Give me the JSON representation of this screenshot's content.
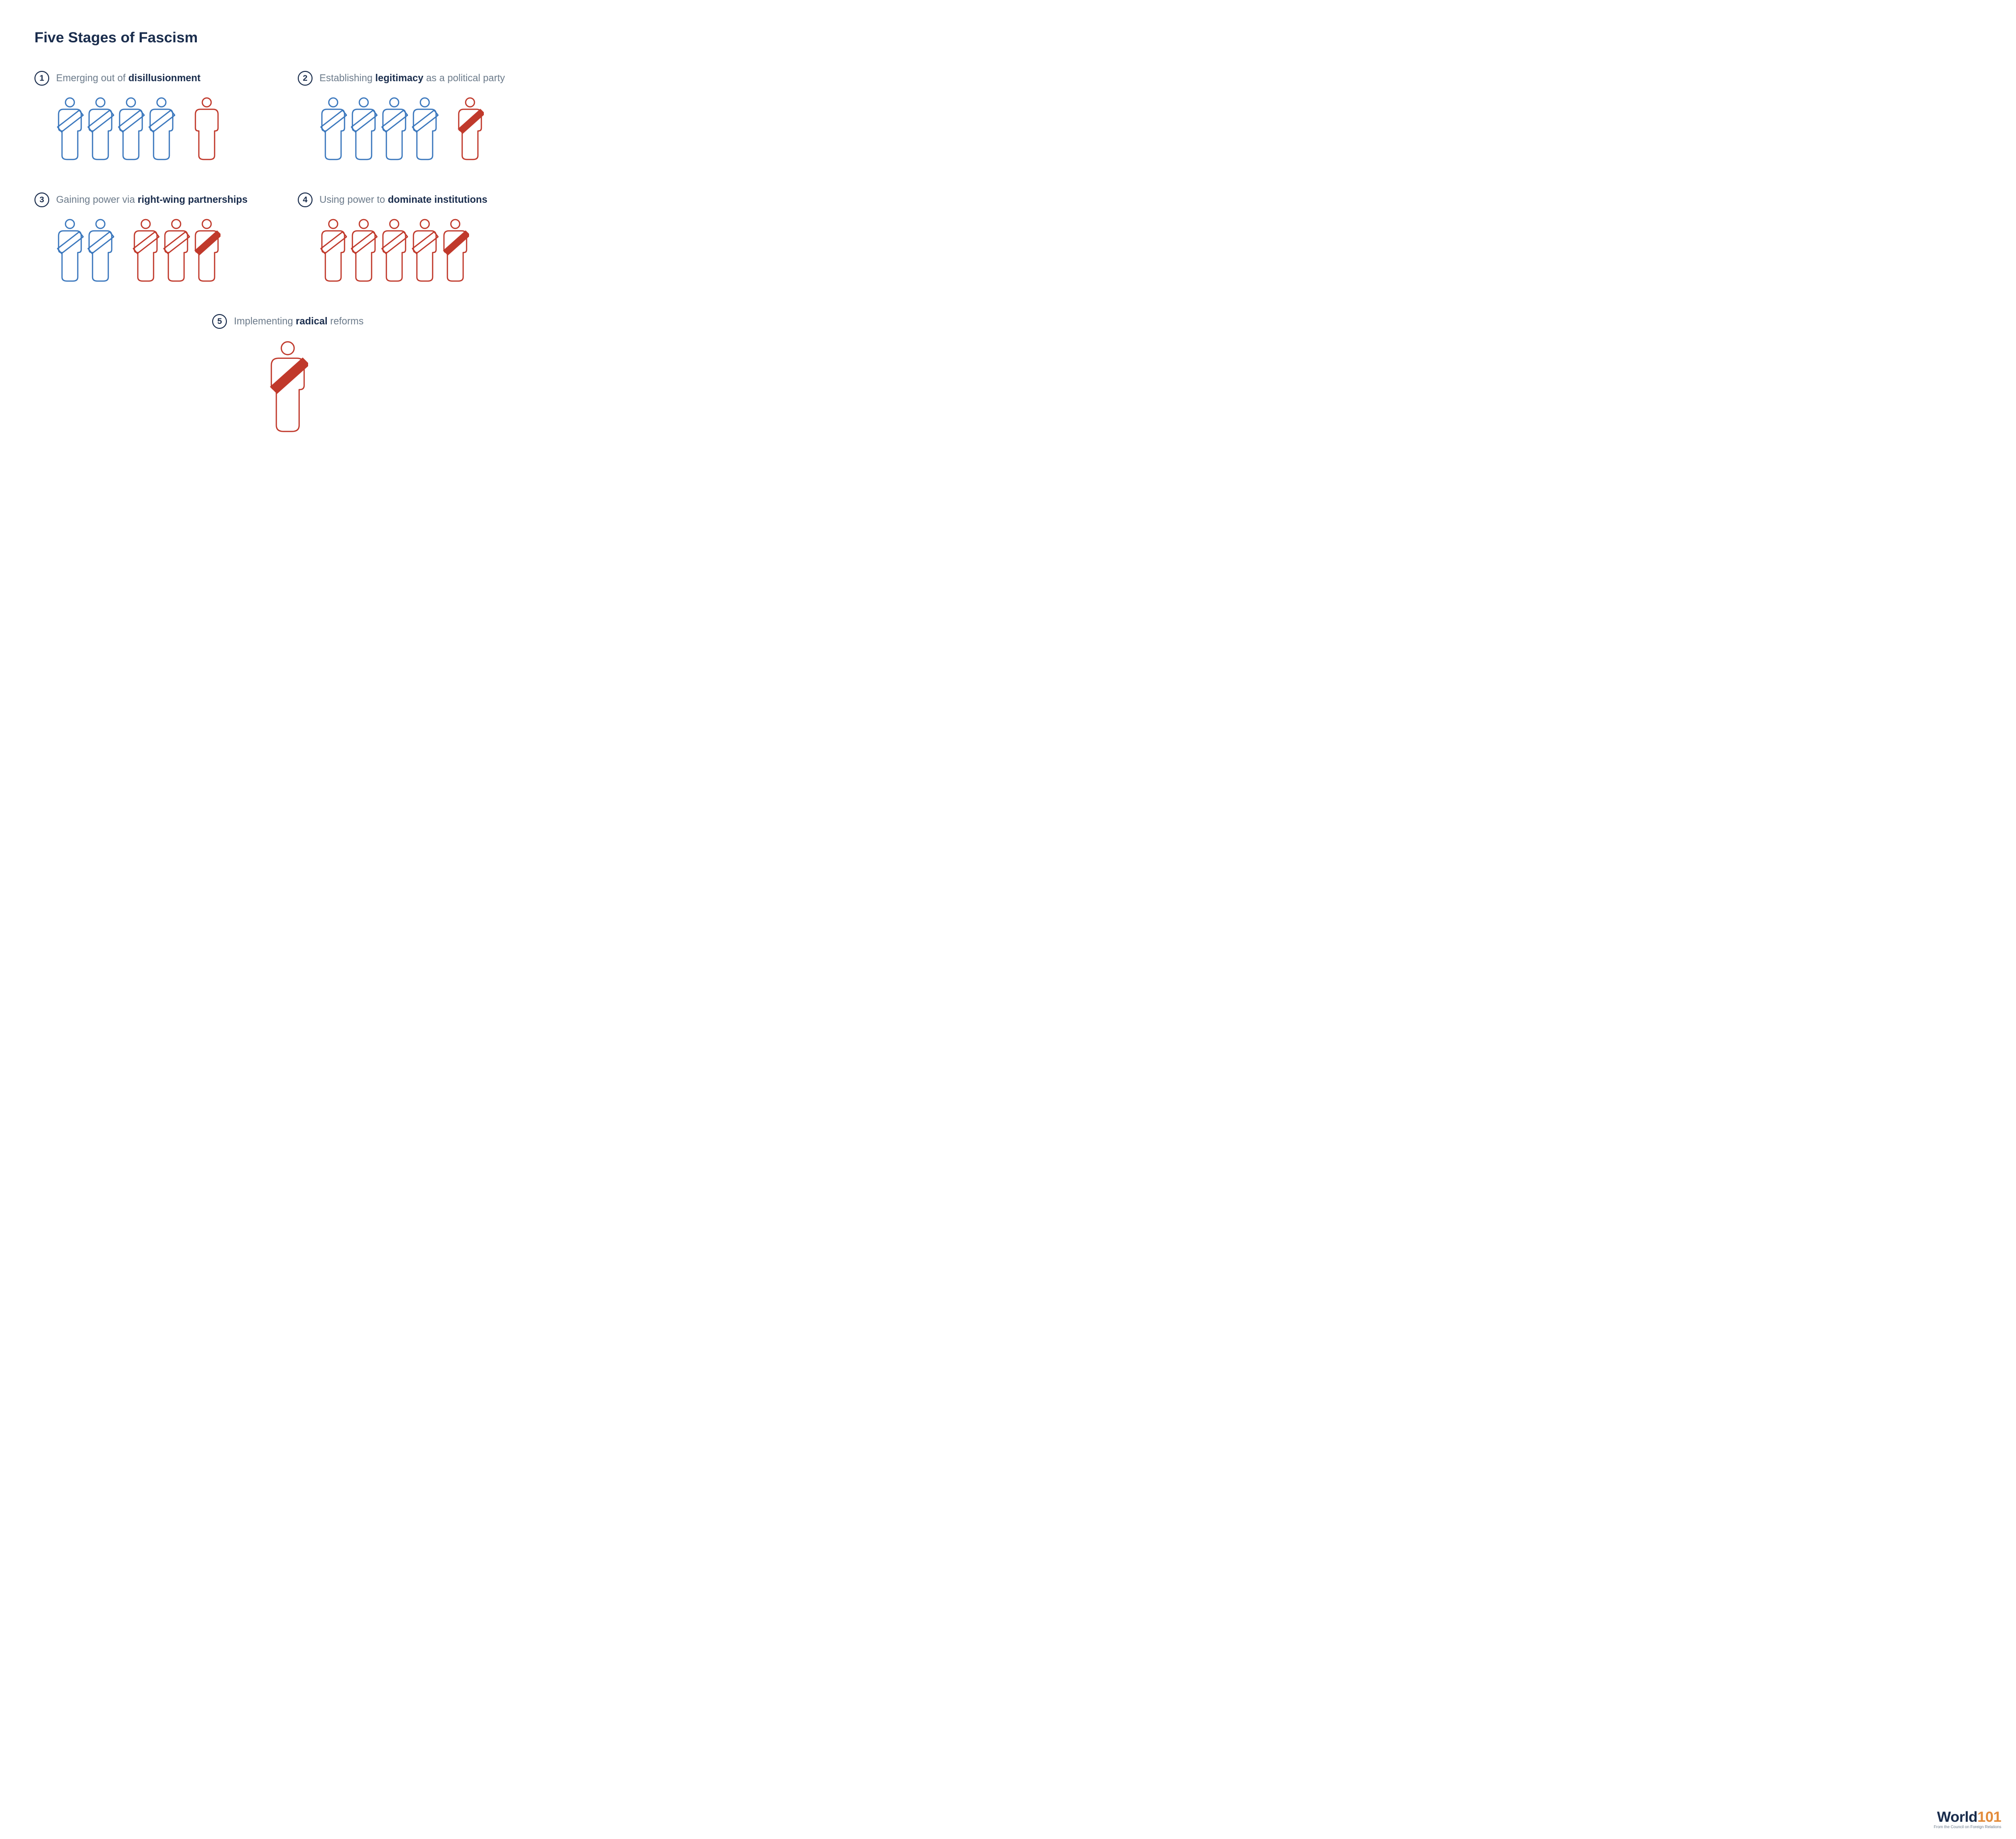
{
  "type": "infographic",
  "title": "Five Stages of Fascism",
  "colors": {
    "title": "#192c4c",
    "number_border": "#192c4c",
    "number_text": "#192c4c",
    "label_light": "#6b7a8a",
    "label_bold": "#192c4c",
    "figure_blue": "#3a77bd",
    "figure_red": "#c0392b",
    "sash_fill_red": "#c0392b",
    "background": "#ffffff",
    "logo_world": "#192c4c",
    "logo_101": "#e38b3a"
  },
  "figure_style": {
    "width": 56,
    "height": 130,
    "stroke_width": 2.5,
    "gap_normal": 6,
    "gap_wide": 36,
    "large_scale": 1.45
  },
  "stages": [
    {
      "num": "1",
      "text_parts": [
        {
          "t": "Emerging out of ",
          "b": false
        },
        {
          "t": "disillusionment",
          "b": true
        }
      ],
      "figures": [
        {
          "color": "blue",
          "sash": "outline",
          "gap": "normal"
        },
        {
          "color": "blue",
          "sash": "outline",
          "gap": "normal"
        },
        {
          "color": "blue",
          "sash": "outline",
          "gap": "normal"
        },
        {
          "color": "blue",
          "sash": "outline",
          "gap": "wide"
        },
        {
          "color": "red",
          "sash": "none",
          "gap": "normal"
        }
      ]
    },
    {
      "num": "2",
      "text_parts": [
        {
          "t": "Establishing ",
          "b": false
        },
        {
          "t": "legitimacy",
          "b": true
        },
        {
          "t": " as a political party",
          "b": false
        }
      ],
      "figures": [
        {
          "color": "blue",
          "sash": "outline",
          "gap": "normal"
        },
        {
          "color": "blue",
          "sash": "outline",
          "gap": "normal"
        },
        {
          "color": "blue",
          "sash": "outline",
          "gap": "normal"
        },
        {
          "color": "blue",
          "sash": "outline",
          "gap": "wide"
        },
        {
          "color": "red",
          "sash": "filled",
          "gap": "normal"
        }
      ]
    },
    {
      "num": "3",
      "text_parts": [
        {
          "t": "Gaining power via ",
          "b": false
        },
        {
          "t": "right-wing partnerships",
          "b": true
        }
      ],
      "figures": [
        {
          "color": "blue",
          "sash": "outline",
          "gap": "normal"
        },
        {
          "color": "blue",
          "sash": "outline",
          "gap": "wide"
        },
        {
          "color": "red",
          "sash": "outline",
          "gap": "normal"
        },
        {
          "color": "red",
          "sash": "outline",
          "gap": "normal"
        },
        {
          "color": "red",
          "sash": "filled",
          "gap": "normal"
        }
      ]
    },
    {
      "num": "4",
      "text_parts": [
        {
          "t": "Using power to ",
          "b": false
        },
        {
          "t": "dominate institutions",
          "b": true
        }
      ],
      "figures": [
        {
          "color": "red",
          "sash": "outline",
          "gap": "normal"
        },
        {
          "color": "red",
          "sash": "outline",
          "gap": "normal"
        },
        {
          "color": "red",
          "sash": "outline",
          "gap": "normal"
        },
        {
          "color": "red",
          "sash": "outline",
          "gap": "normal"
        },
        {
          "color": "red",
          "sash": "filled",
          "gap": "normal"
        }
      ]
    },
    {
      "num": "5",
      "centered": true,
      "text_parts": [
        {
          "t": "Implementing ",
          "b": false
        },
        {
          "t": "radical",
          "b": true
        },
        {
          "t": " reforms",
          "b": false
        }
      ],
      "figures": [
        {
          "color": "red",
          "sash": "filled",
          "gap": "normal",
          "large": true
        }
      ]
    }
  ],
  "logo": {
    "word1": "World",
    "word2": "101",
    "sub": "From the Council on Foreign Relations"
  }
}
